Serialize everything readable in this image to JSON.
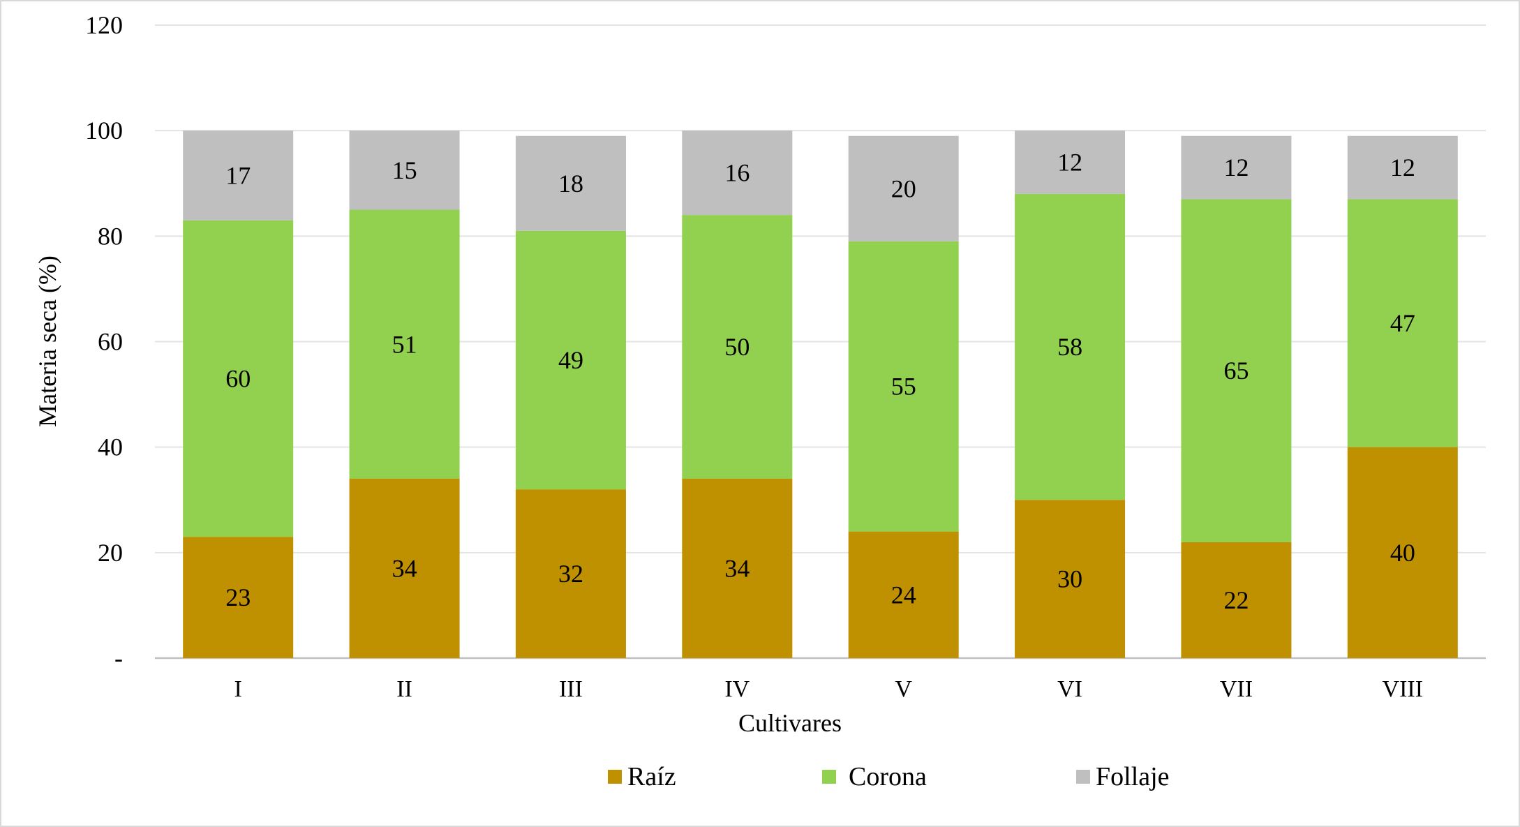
{
  "chart_data": {
    "type": "bar",
    "stacked": true,
    "title": "",
    "xlabel": "Cultivares",
    "ylabel": "Materia seca (%)",
    "ylim": [
      0,
      120
    ],
    "yticks": [
      0,
      20,
      40,
      60,
      80,
      100,
      120
    ],
    "ytick_labels": [
      "-",
      "20",
      "40",
      "60",
      "80",
      "100",
      "120"
    ],
    "grid": true,
    "legend_position": "bottom",
    "categories": [
      "I",
      "II",
      "III",
      "IV",
      "V",
      "VI",
      "VII",
      "VIII"
    ],
    "series": [
      {
        "name": "Raíz",
        "color": "#bf9000",
        "values": [
          23,
          34,
          32,
          34,
          24,
          30,
          22,
          40
        ]
      },
      {
        "name": "Corona",
        "color": "#92d050",
        "values": [
          60,
          51,
          49,
          50,
          55,
          58,
          65,
          47
        ]
      },
      {
        "name": "Follaje",
        "color": "#bfbfbf",
        "values": [
          17,
          15,
          18,
          16,
          20,
          12,
          12,
          12
        ]
      }
    ]
  }
}
